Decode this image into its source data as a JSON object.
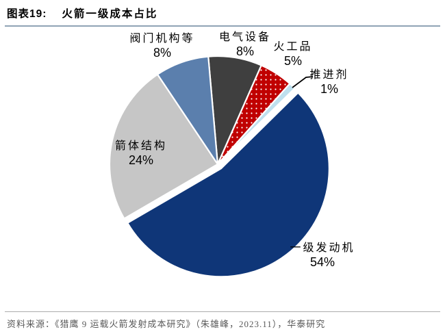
{
  "header": {
    "tag": "图表19:",
    "title": "火箭一级成本占比"
  },
  "chart_data": {
    "type": "pie",
    "title": "火箭一级成本占比",
    "start_angle_deg": -5,
    "direction": "clockwise",
    "legend": "none",
    "label_style": "category name + percent, outside or inside slice",
    "slices": [
      {
        "label": "电气设备",
        "value": 8,
        "display": "8%",
        "color": "#3f3f3f"
      },
      {
        "label": "火工品",
        "value": 5,
        "display": "5%",
        "color": "#c00000",
        "pattern": "white-dots"
      },
      {
        "label": "推进剂",
        "value": 1,
        "display": "1%",
        "color": "#bfe0ee",
        "leader_line": true
      },
      {
        "label": "一级发动机",
        "value": 54,
        "display": "54%",
        "color": "#0f3678",
        "exploded": true
      },
      {
        "label": "箭体结构",
        "value": 24,
        "display": "24%",
        "color": "#c6c6c6"
      },
      {
        "label": "阀门机构等",
        "value": 8,
        "display": "8%",
        "color": "#5b7fad"
      }
    ]
  },
  "footer": {
    "source": "资料来源：《猎鹰 9 运载火箭发射成本研究》（朱雄峰，2023.11），华泰研究"
  }
}
